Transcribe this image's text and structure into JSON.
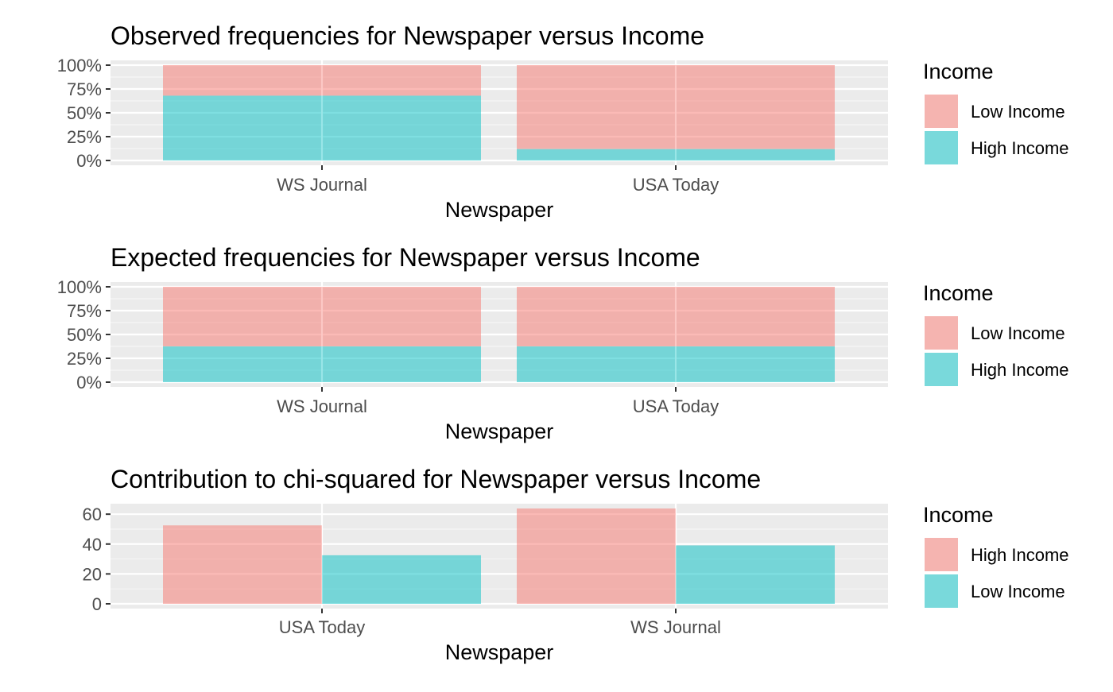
{
  "chart_data": [
    {
      "type": "bar",
      "stacked": true,
      "normalized": true,
      "title": "Observed frequencies for Newspaper versus Income",
      "xlabel": "Newspaper",
      "ylabel": "",
      "categories": [
        "WS Journal",
        "USA Today"
      ],
      "ylim": [
        0,
        1
      ],
      "yticks": [
        "0%",
        "25%",
        "50%",
        "75%",
        "100%"
      ],
      "ytick_values": [
        0,
        0.25,
        0.5,
        0.75,
        1
      ],
      "series": [
        {
          "name": "High Income",
          "color": "#00BFC4",
          "values": [
            0.68,
            0.12
          ]
        },
        {
          "name": "Low Income",
          "color": "#F8766D",
          "values": [
            0.32,
            0.88
          ]
        }
      ],
      "legend": {
        "title": "Income",
        "position": "right",
        "entries": [
          {
            "label": "Low Income",
            "color": "#F8766D"
          },
          {
            "label": "High Income",
            "color": "#00BFC4"
          }
        ]
      },
      "grid": true
    },
    {
      "type": "bar",
      "stacked": true,
      "normalized": true,
      "title": "Expected frequencies for Newspaper versus Income",
      "xlabel": "Newspaper",
      "ylabel": "",
      "categories": [
        "WS Journal",
        "USA Today"
      ],
      "ylim": [
        0,
        1
      ],
      "yticks": [
        "0%",
        "25%",
        "50%",
        "75%",
        "100%"
      ],
      "ytick_values": [
        0,
        0.25,
        0.5,
        0.75,
        1
      ],
      "series": [
        {
          "name": "High Income",
          "color": "#00BFC4",
          "values": [
            0.375,
            0.375
          ]
        },
        {
          "name": "Low Income",
          "color": "#F8766D",
          "values": [
            0.625,
            0.625
          ]
        }
      ],
      "legend": {
        "title": "Income",
        "position": "right",
        "entries": [
          {
            "label": "Low Income",
            "color": "#F8766D"
          },
          {
            "label": "High Income",
            "color": "#00BFC4"
          }
        ]
      },
      "grid": true
    },
    {
      "type": "bar",
      "stacked": false,
      "normalized": false,
      "title": "Contribution to chi-squared for Newspaper versus Income",
      "xlabel": "Newspaper",
      "ylabel": "",
      "categories": [
        "USA Today",
        "WS Journal"
      ],
      "ylim": [
        0,
        67
      ],
      "yticks": [
        "0",
        "20",
        "40",
        "60"
      ],
      "ytick_values": [
        0,
        20,
        40,
        60
      ],
      "series": [
        {
          "name": "High Income",
          "color": "#F8766D",
          "values": [
            52.5,
            63.8
          ]
        },
        {
          "name": "Low Income",
          "color": "#00BFC4",
          "values": [
            32.5,
            39.1
          ]
        }
      ],
      "legend": {
        "title": "Income",
        "position": "right",
        "entries": [
          {
            "label": "High Income",
            "color": "#F8766D"
          },
          {
            "label": "Low Income",
            "color": "#00BFC4"
          }
        ]
      },
      "grid": true
    }
  ]
}
